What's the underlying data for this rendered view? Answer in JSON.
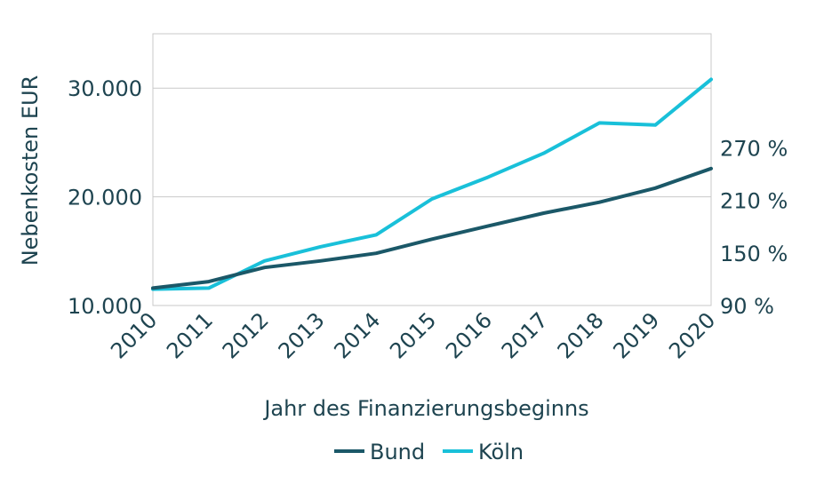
{
  "chart_data": {
    "type": "line",
    "xlabel": "Jahr des Finanzierungsbeginns",
    "ylabel": "Nebenkosten EUR",
    "x": [
      "2010",
      "2011",
      "2012",
      "2013",
      "2014",
      "2015",
      "2016",
      "2017",
      "2018",
      "2019",
      "2020"
    ],
    "y_left": {
      "ylim": [
        10000,
        35000
      ],
      "ticks": [
        10000,
        20000,
        30000
      ],
      "tick_labels": [
        "10.000",
        "20.000",
        "30.000"
      ]
    },
    "y_right": {
      "ylim": [
        90,
        400
      ],
      "ticks": [
        90,
        150,
        210,
        270
      ],
      "tick_labels": [
        "90 %",
        "150 %",
        "210 %",
        "270 %"
      ]
    },
    "series": [
      {
        "name": "Bund",
        "axis": "left",
        "color": "#1b5868",
        "values": [
          11600,
          12200,
          13500,
          14100,
          14800,
          16100,
          17300,
          18500,
          19500,
          20800,
          22600
        ]
      },
      {
        "name": "Köln",
        "axis": "left",
        "color": "#19c0d9",
        "values": [
          11500,
          11600,
          14100,
          15400,
          16500,
          19800,
          21800,
          24000,
          26800,
          26600,
          30800
        ]
      }
    ],
    "grid": true,
    "legend_position": "bottom"
  }
}
